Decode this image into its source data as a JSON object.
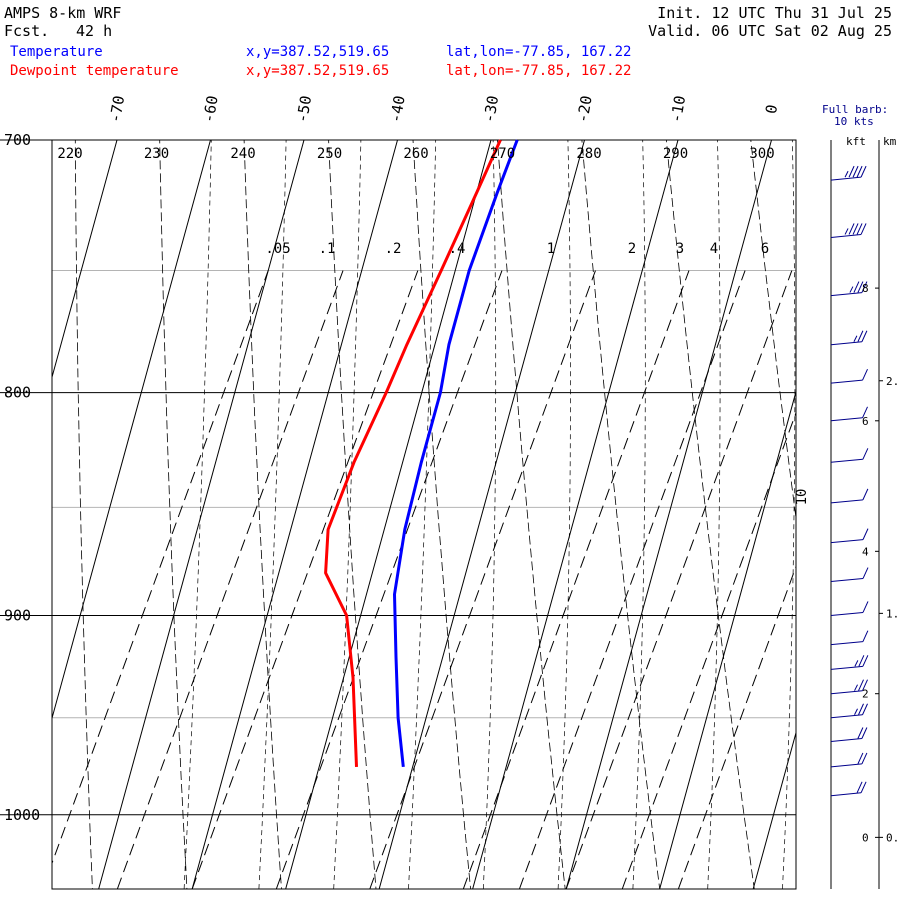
{
  "header": {
    "model": "AMPS 8-km WRF",
    "fcst_label": "Fcst.",
    "fcst_value": "42 h",
    "init": "Init. 12 UTC Thu 31 Jul 25",
    "valid": "Valid. 06 UTC Sat 02 Aug 25"
  },
  "legend": [
    {
      "label": "Temperature",
      "xy": "x,y=387.52,519.65",
      "latlon": "lat,lon=-77.85, 167.22",
      "color": "#0000ff"
    },
    {
      "label": "Dewpoint temperature",
      "xy": "x,y=387.52,519.65",
      "latlon": "lat,lon=-77.85, 167.22",
      "color": "#ff0000"
    }
  ],
  "wind_panel": {
    "barb_label_1": "Full barb:",
    "barb_label_2": "10 kts",
    "unit_kft": "kft",
    "unit_km": "km",
    "kft_ticks": [
      {
        "label": "8",
        "p": 757
      },
      {
        "label": "6",
        "p": 812
      },
      {
        "label": "4",
        "p": 870
      },
      {
        "label": "2",
        "p": 938
      },
      {
        "label": "0",
        "p": 1012
      }
    ],
    "km_ticks": [
      {
        "label": "2.",
        "p": 795
      },
      {
        "label": "1.",
        "p": 899
      },
      {
        "label": "0.",
        "p": 1012
      }
    ]
  },
  "chart_data": {
    "type": "line",
    "diagram": "skew-T log-P",
    "ylabel": "",
    "ylim": [
      1040,
      700
    ],
    "y_log": true,
    "pressure_ticks": [
      700,
      800,
      900,
      1000
    ],
    "minor_pressure_lines": [
      750,
      850,
      950
    ],
    "temperature_ticks": [
      -70,
      -60,
      -50,
      -40,
      -30,
      -20,
      -10,
      0
    ],
    "theta_labels": [
      220,
      230,
      240,
      250,
      260,
      270,
      280,
      290,
      300
    ],
    "mixing_ratio_labels": [
      ".05",
      ".1",
      ".2",
      ".4",
      "1",
      "2",
      "3",
      "4",
      "6",
      "10"
    ],
    "series": [
      {
        "name": "Temperature",
        "color": "#0000ff",
        "points": [
          {
            "p": 700,
            "t": -27.2
          },
          {
            "p": 720,
            "t": -27.8
          },
          {
            "p": 750,
            "t": -28.5
          },
          {
            "p": 780,
            "t": -28.5
          },
          {
            "p": 800,
            "t": -28.0
          },
          {
            "p": 830,
            "t": -28.0
          },
          {
            "p": 860,
            "t": -27.8
          },
          {
            "p": 890,
            "t": -27.0
          },
          {
            "p": 920,
            "t": -25.0
          },
          {
            "p": 950,
            "t": -23.0
          },
          {
            "p": 975,
            "t": -21.0
          }
        ]
      },
      {
        "name": "Dewpoint temperature",
        "color": "#ff0000",
        "points": [
          {
            "p": 700,
            "t": -29.0
          },
          {
            "p": 720,
            "t": -30.0
          },
          {
            "p": 750,
            "t": -31.5
          },
          {
            "p": 780,
            "t": -33.0
          },
          {
            "p": 800,
            "t": -33.8
          },
          {
            "p": 830,
            "t": -35.2
          },
          {
            "p": 860,
            "t": -36.0
          },
          {
            "p": 880,
            "t": -35.0
          },
          {
            "p": 900,
            "t": -31.5
          },
          {
            "p": 930,
            "t": -29.0
          },
          {
            "p": 975,
            "t": -26.0
          }
        ]
      }
    ],
    "wind_barbs": [
      {
        "p": 715,
        "dir": 200,
        "spd": 35
      },
      {
        "p": 737,
        "dir": 200,
        "spd": 35
      },
      {
        "p": 760,
        "dir": 195,
        "spd": 25
      },
      {
        "p": 780,
        "dir": 195,
        "spd": 15
      },
      {
        "p": 796,
        "dir": 190,
        "spd": 10
      },
      {
        "p": 812,
        "dir": 190,
        "spd": 10
      },
      {
        "p": 830,
        "dir": 185,
        "spd": 10
      },
      {
        "p": 848,
        "dir": 185,
        "spd": 10
      },
      {
        "p": 866,
        "dir": 180,
        "spd": 10
      },
      {
        "p": 884,
        "dir": 180,
        "spd": 10
      },
      {
        "p": 900,
        "dir": 180,
        "spd": 10
      },
      {
        "p": 914,
        "dir": 185,
        "spd": 10
      },
      {
        "p": 926,
        "dir": 185,
        "spd": 15
      },
      {
        "p": 938,
        "dir": 190,
        "spd": 15
      },
      {
        "p": 950,
        "dir": 190,
        "spd": 15
      },
      {
        "p": 962,
        "dir": 195,
        "spd": 20
      },
      {
        "p": 975,
        "dir": 195,
        "spd": 20
      },
      {
        "p": 990,
        "dir": 200,
        "spd": 20
      }
    ]
  }
}
